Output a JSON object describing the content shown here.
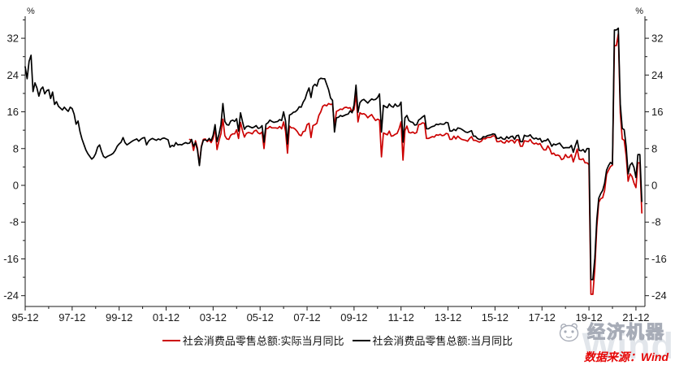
{
  "chart_data": {
    "type": "line",
    "title": "",
    "unit": "%",
    "ylim": [
      -26.4,
      36.8
    ],
    "y_major_ticks": [
      -24,
      -16,
      -8,
      0,
      8,
      16,
      24,
      32
    ],
    "y_minor_ticks": [
      -20,
      -12,
      -4,
      4,
      12,
      20,
      28,
      36
    ],
    "grid": false,
    "legend_position": "bottom-center",
    "x_start": "1995-12",
    "x_end": "2022-03",
    "x_major_labels": [
      "95-12",
      "97-12",
      "99-12",
      "01-12",
      "03-12",
      "05-12",
      "07-12",
      "09-12",
      "11-12",
      "13-12",
      "15-12",
      "17-12",
      "19-12",
      "21-12"
    ],
    "series": [
      {
        "name": "社会消费品零售总额:实际当月同比",
        "color": "#cc0000",
        "start_month_index": 84,
        "start_label": "02-12",
        "values": [
          10.0,
          9.8,
          7.6,
          9.7,
          8.1,
          4.5,
          8.5,
          10.0,
          10.1,
          9.5,
          9.9,
          9.3,
          10.2,
          12.4,
          7.8,
          9.7,
          11.2,
          14.4,
          10.8,
          10.1,
          10.0,
          10.9,
          11.2,
          11.2,
          12.1,
          10.2,
          13.7,
          11.9,
          10.5,
          11.3,
          11.5,
          11.4,
          11.2,
          11.8,
          12.0,
          11.4,
          11.2,
          11.6,
          8.0,
          12.3,
          12.4,
          12.8,
          12.5,
          12.5,
          12.5,
          12.4,
          12.8,
          12.3,
          13.8,
          11.8,
          7.0,
          12.9,
          12.5,
          12.5,
          12.2,
          11.7,
          11.0,
          10.8,
          11.7,
          11.8,
          13.2,
          13.5,
          10.4,
          13.0,
          13.2,
          13.5,
          15.2,
          16.0,
          17.2,
          17.5,
          17.3,
          17.8,
          17.6,
          17.7,
          12.9,
          16.1,
          16.3,
          16.6,
          16.5,
          16.9,
          17.0,
          16.8,
          16.9,
          16.0,
          16.5,
          19.9,
          13.8,
          15.8,
          15.5,
          15.6,
          15.3,
          14.7,
          15.1,
          15.4,
          14.7,
          14.1,
          14.4,
          14.2,
          6.2,
          11.4,
          11.2,
          11.0,
          11.8,
          10.7,
          10.8,
          11.1,
          11.3,
          12.3,
          13.8,
          5.5,
          11.9,
          12.9,
          11.5,
          11.4,
          11.6,
          11.3,
          11.5,
          13.2,
          13.3,
          13.6,
          13.5,
          10.2,
          10.2,
          10.4,
          10.6,
          10.5,
          11.0,
          10.9,
          11.1,
          10.8,
          10.9,
          11.3,
          11.2,
          10.0,
          10.0,
          10.7,
          10.1,
          10.7,
          10.3,
          10.0,
          9.9,
          9.8,
          9.6,
          10.2,
          10.6,
          9.8,
          9.8,
          9.6,
          9.4,
          9.6,
          10.2,
          10.1,
          10.4,
          10.4,
          10.5,
          10.8,
          10.7,
          9.5,
          9.5,
          9.7,
          9.3,
          9.2,
          9.8,
          9.4,
          9.8,
          9.8,
          9.2,
          9.9,
          9.9,
          8.5,
          8.5,
          9.7,
          9.6,
          9.5,
          10.0,
          9.3,
          9.0,
          9.2,
          8.9,
          9.1,
          8.3,
          7.7,
          7.7,
          8.6,
          7.9,
          6.8,
          7.0,
          6.5,
          6.6,
          6.4,
          5.6,
          5.8,
          6.7,
          6.1,
          6.1,
          6.7,
          5.1,
          6.4,
          7.9,
          5.7,
          5.6,
          5.8,
          4.9,
          4.9,
          4.5,
          -23.7,
          -23.7,
          -18.1,
          -9.1,
          -3.7,
          -2.9,
          -2.7,
          -1.1,
          2.4,
          3.3,
          4.1,
          4.4,
          30.4,
          30.4,
          33.0,
          15.8,
          10.1,
          9.8,
          6.4,
          0.9,
          2.5,
          1.9,
          0.5,
          -0.5,
          4.9,
          4.9,
          -6.0
        ]
      },
      {
        "name": "社会消费品零售总额:当月同比",
        "color": "#000000",
        "start_month_index": 0,
        "start_label": "95-12",
        "values": [
          25.8,
          23.2,
          27.0,
          28.3,
          20.4,
          22.3,
          21.2,
          19.4,
          20.9,
          21.4,
          19.9,
          20.6,
          20.8,
          18.9,
          20.3,
          17.6,
          18.2,
          17.2,
          16.8,
          16.4,
          17.0,
          16.5,
          16.1,
          17.0,
          16.7,
          15.5,
          13.3,
          14.0,
          11.7,
          10.1,
          8.9,
          7.7,
          6.9,
          6.3,
          5.7,
          6.1,
          6.9,
          8.3,
          8.8,
          7.4,
          6.3,
          6.0,
          6.3,
          6.5,
          6.7,
          7.0,
          7.6,
          8.5,
          9.0,
          9.4,
          10.4,
          9.3,
          8.8,
          9.1,
          9.4,
          9.7,
          9.9,
          10.1,
          9.6,
          10.0,
          10.3,
          10.4,
          8.8,
          9.6,
          10.0,
          10.2,
          10.0,
          9.8,
          10.1,
          9.9,
          10.2,
          10.3,
          10.1,
          9.9,
          8.3,
          8.7,
          8.5,
          9.3,
          8.8,
          8.9,
          8.8,
          9.1,
          9.3,
          9.1,
          9.2,
          10.0,
          8.5,
          9.3,
          7.7,
          4.3,
          8.3,
          9.8,
          9.9,
          9.7,
          10.2,
          9.7,
          10.9,
          13.2,
          9.5,
          11.1,
          13.2,
          17.8,
          13.9,
          13.2,
          13.1,
          14.0,
          14.2,
          13.9,
          14.5,
          11.8,
          15.8,
          13.9,
          12.2,
          12.8,
          12.9,
          12.7,
          12.5,
          12.7,
          13.0,
          12.4,
          12.5,
          13.0,
          9.4,
          13.3,
          13.6,
          14.2,
          13.9,
          13.7,
          13.8,
          13.9,
          14.3,
          14.1,
          16.0,
          14.0,
          9.0,
          15.3,
          15.5,
          15.9,
          16.0,
          16.4,
          17.1,
          17.0,
          18.1,
          18.8,
          20.2,
          21.2,
          19.1,
          21.5,
          22.0,
          21.6,
          23.0,
          23.3,
          23.2,
          23.2,
          22.0,
          20.8,
          19.0,
          18.5,
          11.6,
          14.7,
          14.8,
          15.2,
          15.0,
          15.2,
          15.4,
          15.5,
          16.2,
          15.8,
          17.5,
          21.8,
          15.9,
          18.0,
          18.5,
          18.7,
          18.3,
          17.9,
          18.4,
          18.8,
          18.6,
          18.7,
          19.1,
          19.9,
          11.6,
          17.4,
          17.1,
          16.9,
          17.7,
          17.2,
          17.0,
          17.7,
          17.2,
          17.3,
          18.1,
          9.4,
          14.7,
          15.2,
          14.1,
          13.8,
          13.7,
          13.1,
          13.2,
          14.2,
          14.5,
          14.9,
          15.2,
          12.3,
          12.3,
          12.6,
          12.8,
          12.9,
          13.3,
          13.2,
          13.4,
          13.3,
          13.3,
          13.7,
          13.6,
          11.8,
          11.8,
          12.2,
          11.9,
          12.5,
          12.4,
          12.2,
          11.9,
          11.6,
          11.5,
          11.7,
          11.9,
          10.7,
          10.7,
          10.2,
          10.0,
          10.1,
          10.6,
          10.5,
          10.8,
          10.9,
          11.0,
          11.2,
          11.1,
          10.2,
          10.2,
          10.5,
          10.1,
          10.0,
          10.6,
          10.2,
          10.6,
          10.7,
          10.0,
          10.8,
          10.9,
          9.5,
          9.5,
          10.9,
          10.7,
          10.7,
          11.0,
          10.4,
          10.1,
          10.3,
          10.0,
          10.2,
          9.4,
          9.7,
          9.7,
          10.1,
          9.4,
          8.5,
          9.0,
          8.8,
          9.0,
          9.2,
          8.6,
          8.1,
          8.2,
          8.2,
          8.2,
          8.7,
          7.2,
          8.6,
          9.8,
          7.6,
          7.5,
          7.8,
          7.2,
          8.0,
          8.0,
          -20.5,
          -20.5,
          -15.8,
          -7.5,
          -2.8,
          -1.8,
          -1.1,
          0.5,
          3.3,
          4.3,
          5.0,
          4.6,
          33.8,
          33.8,
          34.2,
          17.7,
          12.4,
          12.1,
          8.5,
          2.5,
          4.4,
          4.9,
          3.9,
          1.7,
          6.7,
          6.7,
          -3.5
        ]
      }
    ]
  },
  "footer": {
    "brand": "经济机器",
    "watermark": "Wind",
    "source_label": "数据来源：Wind"
  }
}
